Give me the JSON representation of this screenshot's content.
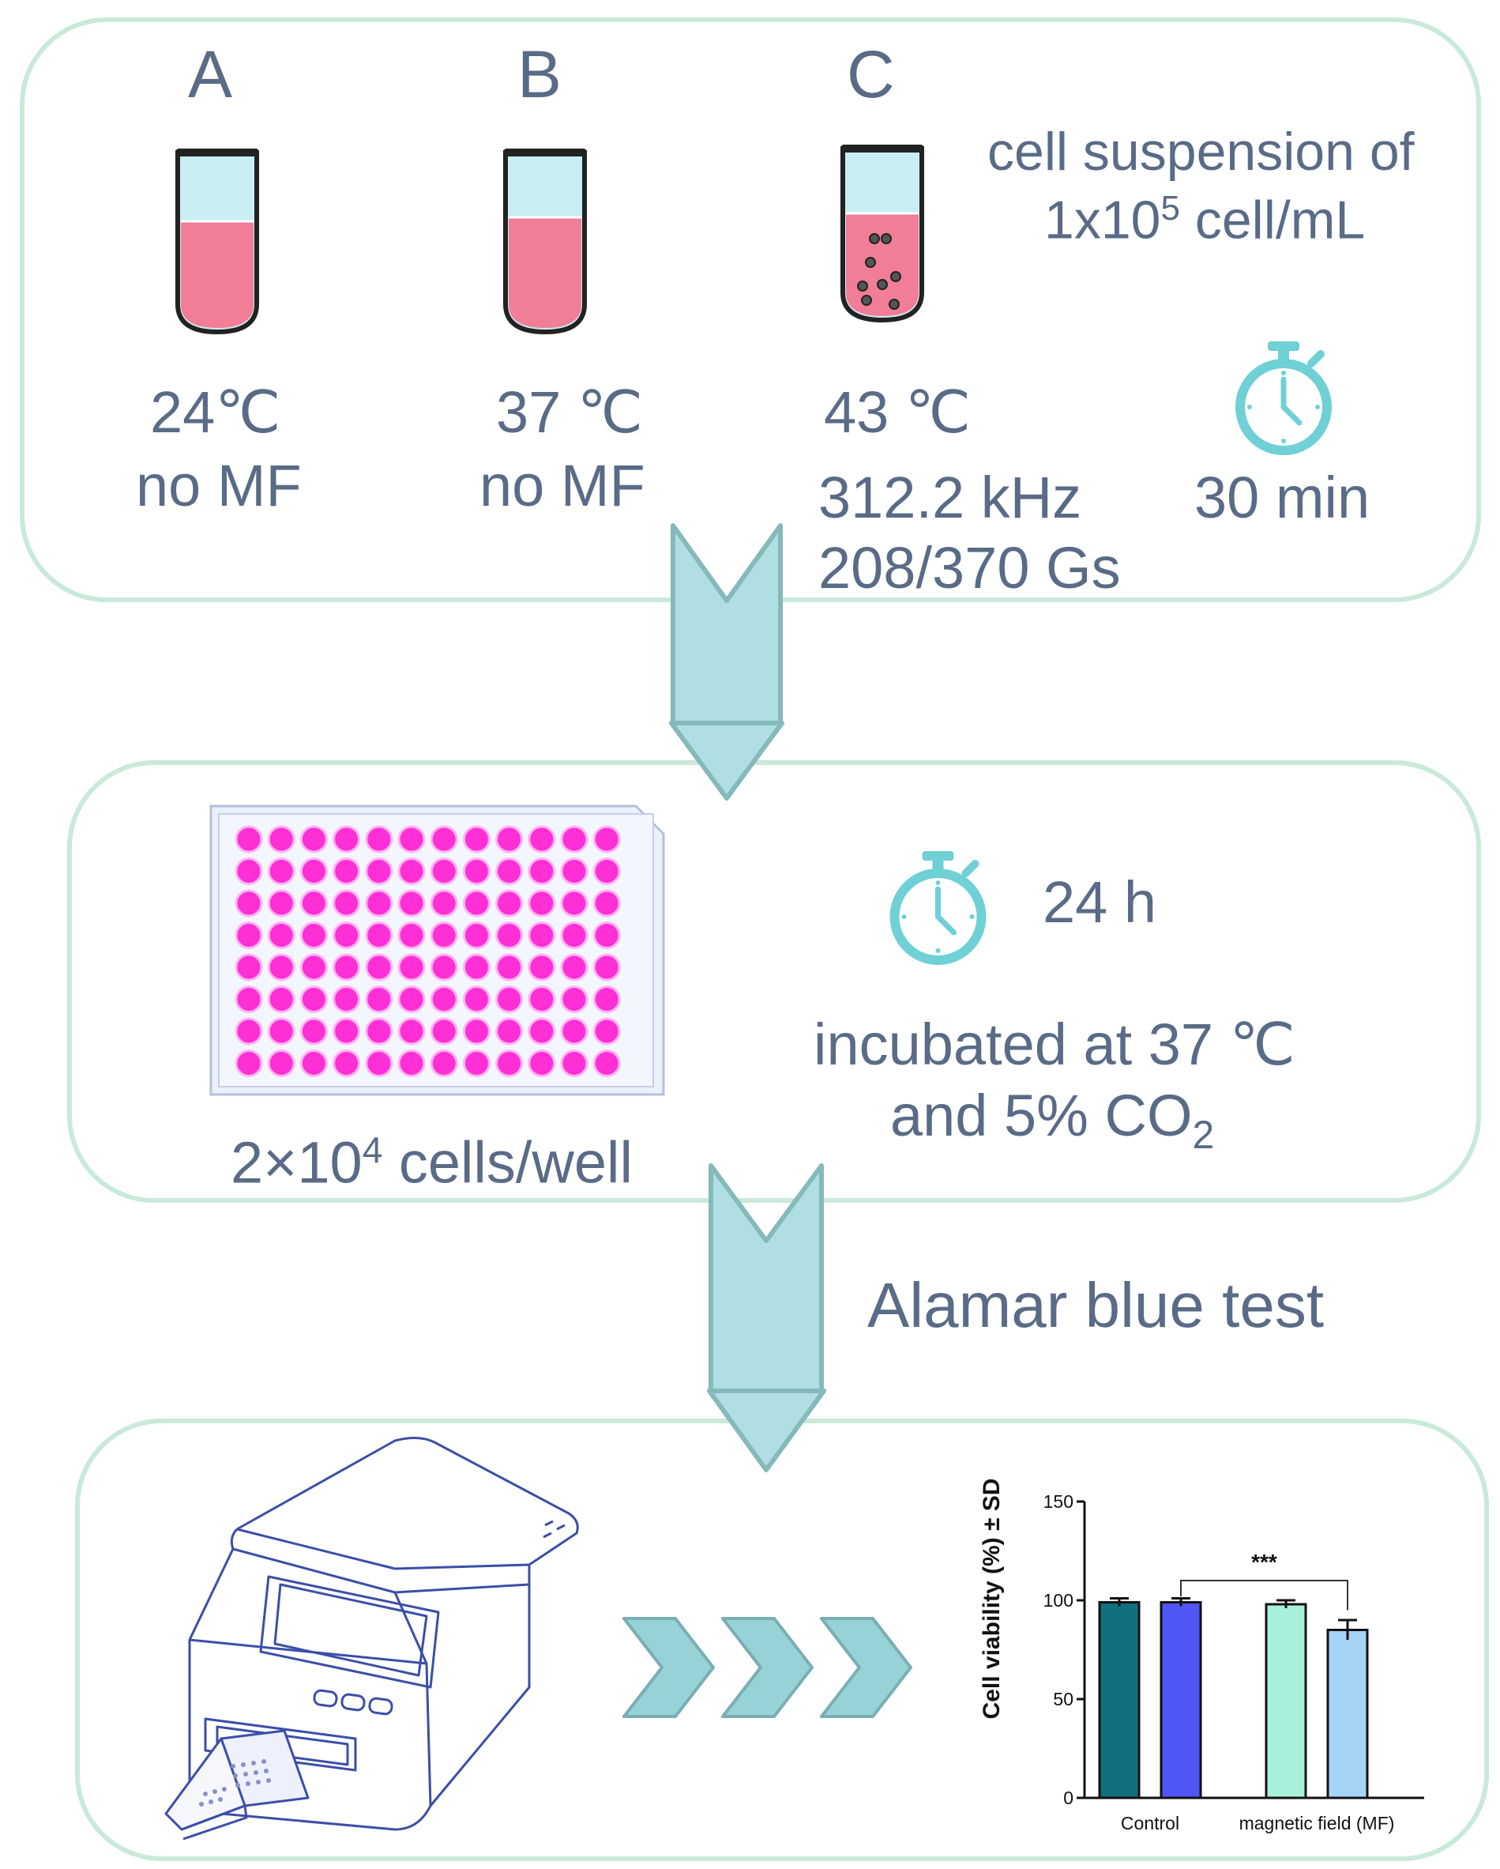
{
  "panel1": {
    "tubes": [
      {
        "letter": "A",
        "temp": "24℃",
        "condition": "no MF"
      },
      {
        "letter": "B",
        "temp": "37 ℃",
        "condition": "no MF"
      },
      {
        "letter": "C",
        "temp": "43 ℃",
        "frequency": "312.2 kHz",
        "field": "208/370 Gs"
      }
    ],
    "suspension_line1": "cell suspension of",
    "suspension_line2_prefix": "1x10",
    "suspension_line2_sup": "5",
    "suspension_line2_suffix": " cell/mL",
    "time": "30 min"
  },
  "panel2": {
    "time": "24 h",
    "incubation_line1": "incubated at 37 ℃",
    "incubation_line2_prefix": "and 5% CO",
    "incubation_line2_sub": "2",
    "density_prefix": "2×10",
    "density_sup": "4",
    "density_suffix": " cells/well",
    "plate_rows": 8,
    "plate_cols": 12,
    "well_color": "#ff2fd6"
  },
  "step_label": "Alamar blue test",
  "chart_data": {
    "type": "bar",
    "ylabel": "Cell viability (%)  ± SD",
    "ylim": [
      0,
      150
    ],
    "yticks": [
      0,
      50,
      100,
      150
    ],
    "group_labels": [
      "Control",
      "magnetic field (MF)"
    ],
    "bars": [
      {
        "group": "Control",
        "value": 99,
        "error": 2,
        "color": "#126f7e"
      },
      {
        "group": "Control",
        "value": 99,
        "error": 2,
        "color": "#4f56f5"
      },
      {
        "group": "magnetic field (MF)",
        "value": 98,
        "error": 2,
        "color": "#a8f0dc"
      },
      {
        "group": "magnetic field (MF)",
        "value": 85,
        "error": 5,
        "color": "#a6d4f5"
      }
    ],
    "significance": {
      "from_bar": 1,
      "to_bar": 3,
      "label": "***"
    }
  },
  "colors": {
    "panel_border": "#c9e9d9",
    "arrow_fill": "#b0dfe3",
    "arrow_stroke": "#86b9b9",
    "text": "#5a6b87",
    "timer": "#6fd0d6",
    "liquid": "#f27d97",
    "liquid_top": "#c8eef3"
  }
}
